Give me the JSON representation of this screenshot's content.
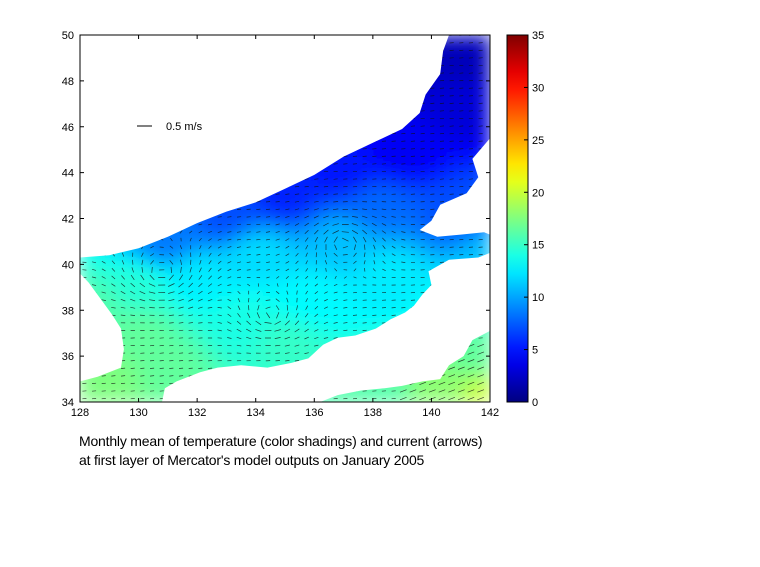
{
  "caption": {
    "line1": "Monthly mean of temperature (color shadings) and current (arrows)",
    "line2": "at first layer of Mercator's model outputs on January 2005"
  },
  "chart_data": {
    "type": "heatmap",
    "title": "",
    "xlabel": "",
    "ylabel": "",
    "xlim": [
      128,
      142
    ],
    "ylim": [
      34,
      50
    ],
    "x_ticks": [
      128,
      130,
      132,
      134,
      136,
      138,
      140,
      142
    ],
    "y_ticks": [
      34,
      36,
      38,
      40,
      42,
      44,
      46,
      48,
      50
    ],
    "colorbar": {
      "range": [
        0,
        35
      ],
      "ticks": [
        0,
        5,
        10,
        15,
        20,
        25,
        30,
        35
      ],
      "colormap": "jet",
      "colors": [
        "#00008f",
        "#0000ff",
        "#00ffff",
        "#ffff00",
        "#ff0000",
        "#800000"
      ]
    },
    "vector_scale": {
      "label": "0.5 m/s",
      "value": 0.5,
      "unit": "m/s"
    },
    "sea_outline": [
      [
        128,
        40.3
      ],
      [
        129,
        40.4
      ],
      [
        130,
        40.7
      ],
      [
        131,
        41.2
      ],
      [
        132,
        41.8
      ],
      [
        133,
        42.3
      ],
      [
        134,
        42.7
      ],
      [
        135,
        43.3
      ],
      [
        136,
        43.9
      ],
      [
        137,
        44.7
      ],
      [
        138,
        45.3
      ],
      [
        139,
        45.9
      ],
      [
        139.6,
        46.6
      ],
      [
        139.8,
        47.4
      ],
      [
        140.3,
        48.3
      ],
      [
        140.4,
        49.3
      ],
      [
        140.6,
        50
      ],
      [
        142,
        50
      ],
      [
        142,
        45.5
      ],
      [
        141.4,
        44.6
      ],
      [
        141.6,
        43.8
      ],
      [
        141.2,
        43.1
      ],
      [
        140.3,
        42.6
      ],
      [
        140,
        41.9
      ],
      [
        139.6,
        41.5
      ],
      [
        140.2,
        41.2
      ],
      [
        141,
        41.3
      ],
      [
        141.8,
        41.4
      ],
      [
        142,
        41.3
      ],
      [
        142,
        40.5
      ],
      [
        141.6,
        40.3
      ],
      [
        140.6,
        40.2
      ],
      [
        139.9,
        39.7
      ],
      [
        140,
        39.1
      ],
      [
        139.7,
        38.7
      ],
      [
        139.4,
        38.2
      ],
      [
        139.1,
        37.9
      ],
      [
        138.6,
        37.6
      ],
      [
        138.1,
        37.2
      ],
      [
        137.4,
        36.9
      ],
      [
        136.8,
        36.8
      ],
      [
        136.3,
        36.5
      ],
      [
        135.8,
        35.9
      ],
      [
        135.2,
        35.7
      ],
      [
        134.4,
        35.5
      ],
      [
        133.5,
        35.6
      ],
      [
        132.7,
        35.5
      ],
      [
        132.1,
        35.3
      ],
      [
        131.3,
        34.9
      ],
      [
        130.9,
        34.6
      ],
      [
        130.8,
        34.0
      ],
      [
        128,
        34
      ],
      [
        128,
        34.9
      ],
      [
        128.6,
        35.1
      ],
      [
        129.4,
        35.5
      ],
      [
        129.5,
        36.3
      ],
      [
        129.4,
        37.2
      ],
      [
        129.1,
        37.8
      ],
      [
        128.7,
        38.5
      ],
      [
        128.3,
        39.2
      ],
      [
        128,
        39.6
      ]
    ],
    "pacific_outline": [
      [
        140.7,
        34
      ],
      [
        142,
        34
      ],
      [
        142,
        37.1
      ],
      [
        141.4,
        36.7
      ],
      [
        141.1,
        36.0
      ],
      [
        140.6,
        35.6
      ],
      [
        140.3,
        35.0
      ],
      [
        139.7,
        34.9
      ],
      [
        139.0,
        34.7
      ],
      [
        138.4,
        34.6
      ],
      [
        137.6,
        34.5
      ],
      [
        136.8,
        34.3
      ],
      [
        136.2,
        34.0
      ]
    ],
    "temperature_field": [
      {
        "lon": 141,
        "lat": 49,
        "t": 2.0
      },
      {
        "lon": 141,
        "lat": 47,
        "t": 3.0
      },
      {
        "lon": 139,
        "lat": 45,
        "t": 4.0
      },
      {
        "lon": 137,
        "lat": 44,
        "t": 5.0
      },
      {
        "lon": 135,
        "lat": 43,
        "t": 5.5
      },
      {
        "lon": 133,
        "lat": 42,
        "t": 7.0
      },
      {
        "lon": 131,
        "lat": 41,
        "t": 8.5
      },
      {
        "lon": 138,
        "lat": 42.5,
        "t": 8.0
      },
      {
        "lon": 141,
        "lat": 42,
        "t": 7.0
      },
      {
        "lon": 137,
        "lat": 41,
        "t": 11.0
      },
      {
        "lon": 134,
        "lat": 40.5,
        "t": 12.0
      },
      {
        "lon": 132,
        "lat": 39.5,
        "t": 12.5
      },
      {
        "lon": 130,
        "lat": 39,
        "t": 14.5
      },
      {
        "lon": 128.5,
        "lat": 38,
        "t": 16.0
      },
      {
        "lon": 130,
        "lat": 37,
        "t": 16.5
      },
      {
        "lon": 129,
        "lat": 35,
        "t": 17.5
      },
      {
        "lon": 131,
        "lat": 35.5,
        "t": 16.5
      },
      {
        "lon": 133.5,
        "lat": 37.5,
        "t": 14.0
      },
      {
        "lon": 136,
        "lat": 38.5,
        "t": 13.0
      },
      {
        "lon": 138.5,
        "lat": 39.5,
        "t": 12.5
      },
      {
        "lon": 135,
        "lat": 36.5,
        "t": 15.0
      },
      {
        "lon": 138,
        "lat": 34.5,
        "t": 16.0
      },
      {
        "lon": 140.5,
        "lat": 34.5,
        "t": 18.0
      },
      {
        "lon": 141.7,
        "lat": 34.3,
        "t": 20.0
      },
      {
        "lon": 141.5,
        "lat": 36,
        "t": 16.5
      },
      {
        "lon": 141.5,
        "lat": 38.5,
        "t": 14.0
      },
      {
        "lon": 141.8,
        "lat": 40.5,
        "t": 11.0
      }
    ]
  }
}
